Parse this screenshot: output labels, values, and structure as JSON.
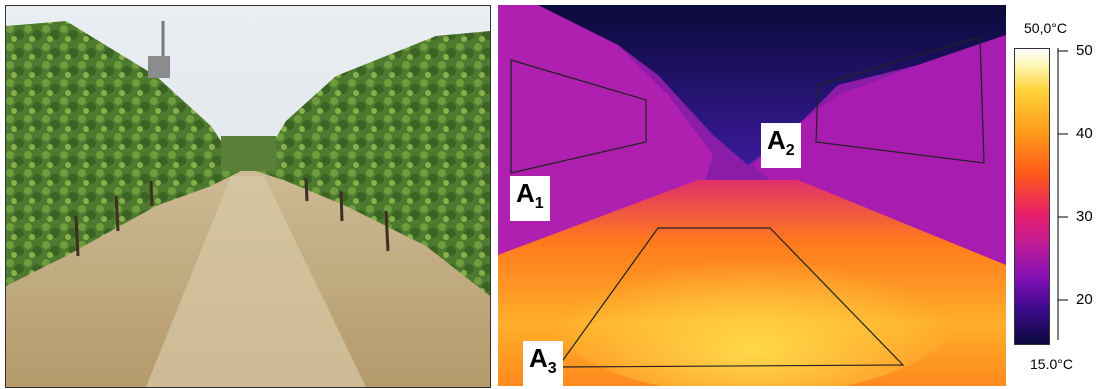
{
  "thermal_labels": {
    "a1_main": "A",
    "a1_sub": "1",
    "a2_main": "A",
    "a2_sub": "2",
    "a3_main": "A",
    "a3_sub": "3"
  },
  "colorbar": {
    "max_label": "50,0°C",
    "min_label": "15.0°C",
    "ticks": [
      "50",
      "40",
      "30",
      "20"
    ]
  }
}
